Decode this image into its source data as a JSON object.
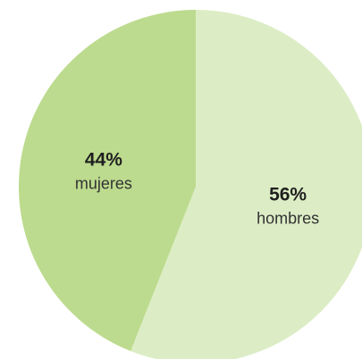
{
  "chart_data": {
    "type": "pie",
    "start_angle_deg": 0,
    "direction": "clockwise",
    "slices": [
      {
        "label": "hombres",
        "value": 56,
        "display": "56%",
        "color": "#dcedc5"
      },
      {
        "label": "mujeres",
        "value": 44,
        "display": "44%",
        "color": "#bcdb8e"
      }
    ],
    "title": "",
    "legend": "none"
  }
}
